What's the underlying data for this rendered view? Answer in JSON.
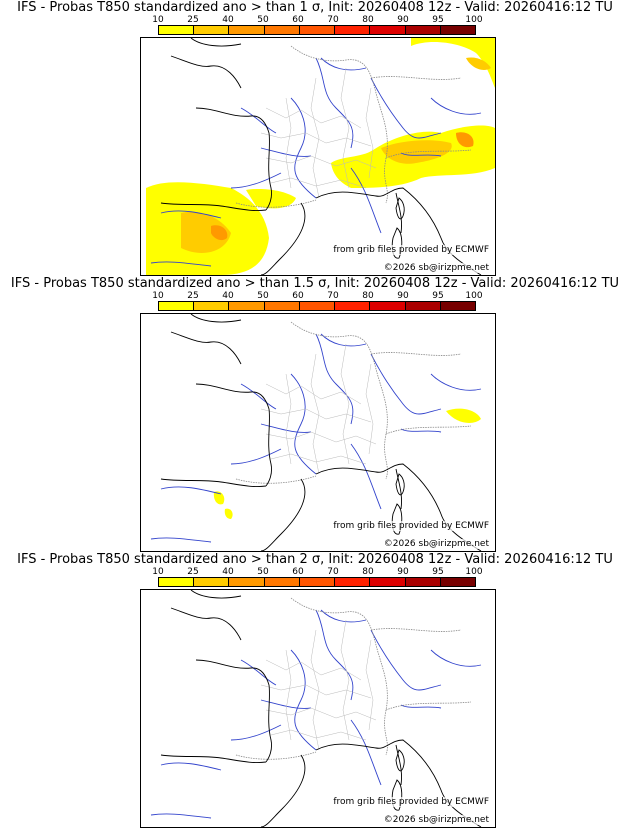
{
  "colorbar": {
    "ticks": [
      "10",
      "25",
      "40",
      "50",
      "60",
      "70",
      "80",
      "90",
      "95",
      "100"
    ],
    "colors": [
      "#ffff00",
      "#ffcc00",
      "#ff9900",
      "#ff7700",
      "#ff5500",
      "#ff2200",
      "#dd0000",
      "#aa0000",
      "#770000"
    ]
  },
  "panels": [
    {
      "title": "IFS - Probas T850  standardized ano > than 1 σ, Init: 20260408 12z - Valid: 20260416:12 TU",
      "source_text": "from grib files provided by ECMWF",
      "copyright_text": "©2026 sb@irizpme.net",
      "anomaly_areas": [
        {
          "region": "northern Spain / Iberia",
          "probability_class": "10-40"
        },
        {
          "region": "Pyrenees",
          "probability_class": "10-25"
        },
        {
          "region": "Alps / Switzerland",
          "probability_class": "10-50"
        },
        {
          "region": "northeast corner (Germany)",
          "probability_class": "10-25"
        }
      ]
    },
    {
      "title": "IFS - Probas T850  standardized ano > than 1.5 σ, Init: 20260408 12z - Valid: 20260416:12 TU",
      "source_text": "from grib files provided by ECMWF",
      "copyright_text": "©2026 sb@irizpme.net",
      "anomaly_areas": [
        {
          "region": "southwestern Alps",
          "probability_class": "10-25"
        },
        {
          "region": "northern Spain",
          "probability_class": "10-25"
        }
      ]
    },
    {
      "title": "IFS - Probas T850  standardized ano > than 2 σ, Init: 20260408 12z - Valid: 20260416:12 TU",
      "source_text": "from grib files provided by ECMWF",
      "copyright_text": "©2026 sb@irizpme.net",
      "anomaly_areas": []
    }
  ]
}
